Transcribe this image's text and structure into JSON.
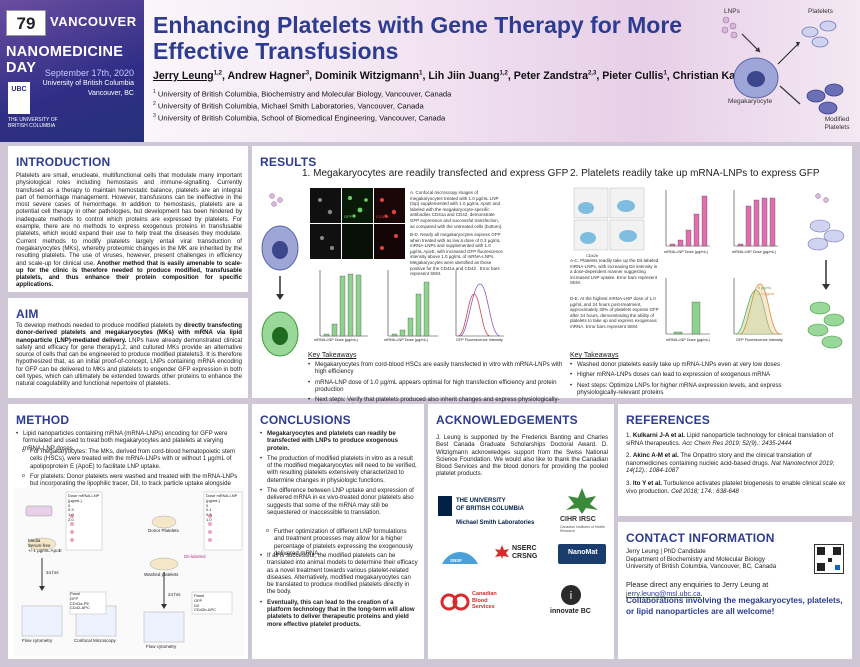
{
  "header": {
    "poster_number": "79",
    "brand_top": "VANCOUVER",
    "brand_main": "NANOMEDICINE DAY",
    "brand_date": "September 17th, 2020",
    "brand_univ": "University of British Columbia",
    "brand_city": "Vancouver, BC",
    "ubc_logo": "UBC",
    "ubc_logo_text": "THE UNIVERSITY OF BRITISH COLUMBIA",
    "title": "Enhancing Platelets with Gene Therapy for More Effective Transfusions",
    "authors": [
      {
        "name": "Jerry Leung",
        "sup": "1,2",
        "underline": true
      },
      {
        "name": "Andrew Hagner",
        "sup": "3"
      },
      {
        "name": "Dominik Witzigmann",
        "sup": "1"
      },
      {
        "name": "Lih Jiin Juang",
        "sup": "1,2"
      },
      {
        "name": "Peter Zandstra",
        "sup": "2,3"
      },
      {
        "name": "Pieter Cullis",
        "sup": "1"
      },
      {
        "name": "Christian Kastrup",
        "sup": "1,2"
      }
    ],
    "affiliations": [
      {
        "sup": "1",
        "text": "University of British Columbia, Biochemistry and Molecular Biology, Vancouver, Canada"
      },
      {
        "sup": "2",
        "text": "University of British Columbia, Michael Smith Laboratories, Vancouver, Canada"
      },
      {
        "sup": "3",
        "text": "University of British Columbia, School of Biomedical Engineering, Vancouver, Canada"
      }
    ],
    "figure_labels": {
      "lnps": "LNPs",
      "platelets": "Platelets",
      "megakaryocyte": "Megakaryocyte",
      "modified": "Modified Platelets"
    }
  },
  "introduction": {
    "title": "INTRODUCTION",
    "text": "Platelets are small, enucleate, multifunctional cells that modulate many important physiological roles including hemostasis and immune-signalling. Currently transfused as a therapy to maintain hemostatic balance, platelets are an integral part of hemorrhage management. However, transfusions can be ineffective in the most severe cases of hemorrhage. In addition to hemostasis, platelets are a potential cell therapy in other pathologies, but development has been hindered by inadequate methods to control which proteins are expressed by platelets. For example, there are no methods to express exogenous proteins in transfusable platelets, which would expand their use to help treat the diseases they modulate. Current methods to modify platelets largely entail viral transduction of megakaryocytes (MKs), whereby proteomic changes in the MK are inherited by the resulting platelets. The use of viruses, however, present challenges in efficiency and scale-up for clinical use. ",
    "bold": "Another method that is easily amenable to scale-up for the clinic is therefore needed to produce modified, transfusable platelets, and thus enhance their protein composition for specific applications."
  },
  "aim": {
    "title": "AIM",
    "text_pre": "To develop methods needed to produce modified platelets by ",
    "bold": "directly transfecting donor-derived platelets and megakaryocytes (MKs) with mRNA via lipid nanoparticle (LNP)-mediated delivery.",
    "text_post": " LNPs have already demonstrated clinical safety and efficacy for gene therapy1,2, and cultured MKs provide an alternative source of cells that can be engineered to produce modified platelets3. It is therefore hypothesized that, as an initial proof-of-concept, LNPs containing mRNA encoding for GFP can be delivered to MKs and platelets to engender GFP expression in both cell types, which can ultimately be extended towards other proteins to enhance the natural coagulability and functional repertoire of platelets."
  },
  "results": {
    "title": "RESULTS",
    "sub1": "1. Megakaryocytes are readily transfected and express GFP",
    "sub2": "2. Platelets readily take up mRNA-LNPs to express GFP",
    "caption1a": "A. Confocal microscopy images of megakaryocytes treated with 1.0 µg/mL LNP (top) supplemented with 1.0 µg/mL ApoE and labeled with the megakaryocyte-specific antibodies CD41a and CD42, demonstrate GFP expression and successful transfection, as compared with the untreated cells (bottom).",
    "caption1b": "B-D. Nearly all megakaryocytes express GFP when treated with as low a dose of 0.3 µg/mL mRNA-LNPs and supplemented with 1.0 µg/mL ApoE, with increased GFP fluorescence intensity above 1.0 µg/mL of mRNA-LNPs. Megakaryocytes were identified as those positive for the CD41a and CD42 . Error bars represent SEM.",
    "caption2a": "A-C. Platelets readily take up the DiI-labeled mRNA-LNPs, with increasing DiI intensity in a dose-dependent manner suggesting increased LNP uptake. Error bars represent SEM.",
    "caption2b": "D-E. At the highest mRNA-LNP dose of 1.0 µg/mL and 24 hours post-treatment, approximately 30% of platelets express GFP after 24 hours, demonstrating the ability of platelets to take up and express exogenous mRNA. Error bars represent SEM.",
    "kt_title": "Key Takeaways",
    "kt1": [
      "Megakaryocytes from cord-blood HSCs are easily transfected in vitro with mRNA-LNPs with high efficiency",
      "mRNA-LNP dose of 1.0 µg/mL appears optimal for high transfection efficiency and protein production",
      "Next steps: Verify that platelets produced also inherit changes and express physiologically-relevant protein"
    ],
    "kt2": [
      "Washed donor platelets easily take up mRNA-LNPs even at very low doses",
      "Higher mRNA-LNPs doses can lead to expression of exogenous mRNA",
      "Next steps: Optimize LNPs for higher mRNA expression levels, and express physiologically-relevant proteins"
    ],
    "fig_labels": {
      "gfp": "GFP",
      "cd41a": "CD41a",
      "cd42": "CD42",
      "axis_dose": "mRNA-LNP Dose (µg/mL)",
      "axis_pct": "Percentage Megakaryocytes Expressing GFP (%)",
      "axis_mfi": "Mean GFP Intensity (a.u.)",
      "axis_gfp": "GFP Fluorescence Intensity",
      "axis_dii": "Mean DiI Intensity",
      "axis_pctplt": "Percentage of DiI+ Platelets",
      "axis_pctgfp": "Percentage Platelets Expressing GFP (%)",
      "cd42b": "CD42b",
      "leg0": "0 µg/mL",
      "leg1": "1.0 µg/mL"
    }
  },
  "method": {
    "title": "METHOD",
    "bullet": "Lipid nanoparticles containing mRNA (mRNA-LNPs) encoding for GFP were formulated and used to treat both megakaryocytes and platelets at varying mRNA-LNP doses.",
    "sub": [
      "For megakaryocytes: The MKs, derived from cord-blood hematopoietic stem cells (HSCs), were treated with the mRNA-LNPs with or without 1 µg/mL of apolipoprotein E (ApoE) to facilitate LNP uptake.",
      "For platelets: Donor platelets were washed and treated with the mRNA-LNPs but incorporating the lipophilic tracer, DiI, to track particle uptake alongside expression."
    ],
    "diagram": {
      "media": "Media",
      "serum": "Serum-free",
      "apoe": "+/-1 µg/mL ApoE",
      "hours": "24 hrs",
      "panel": "Panel",
      "gfp": "GFP",
      "cd41": "CD41a-PE",
      "cd42": "CD42-APC",
      "flow": "Flow cytometry",
      "confocal": "Confocal Microscopy",
      "dose_title": "Dose mRNA-LNP (µg/mL)",
      "doses": [
        "0",
        "0.3",
        "1.0",
        "2.0"
      ],
      "donor": "Donor Platelets",
      "washed": "Washed platelets",
      "dii": "DiI-labeled",
      "hours2": "24 hrs",
      "panel2": "Panel",
      "gfp2": "GFP",
      "dii2": "DiI",
      "cd42b": "CD42b-APC",
      "flow2": "Flow cytometry",
      "dose_title2": "Dose mRNA-LNP (µg/mL)",
      "doses2": [
        "0",
        "0.1",
        "0.3",
        "1.0"
      ]
    }
  },
  "conclusions": {
    "title": "CONCLUSIONS",
    "items": [
      {
        "bold": "Megakaryocytes and platelets can readily be transfected with LNPs to produce exogenous protein.",
        "text": ""
      },
      {
        "bold": "",
        "text": "The production of modified platelets in vitro as a result of the modified megakaryocytes will need to be verified, with resulting platelets extensively characterized to determine changes in physiologic functions."
      },
      {
        "bold": "",
        "text": "The difference between LNP uptake and expression of delivered mRNA in ex vivo-treated donor platelets also suggests that some of the mRNA may still be sequestered or inaccessible to translation."
      }
    ],
    "sub": "Further optimization of different LNP formulations and treatment processes may allow for a higher percentage of platelets expressing the exogenously delivered mRNA.",
    "items2": [
      {
        "bold": "",
        "text": "If all is successful, the modified platelets can be translated into animal models to determine their efficacy as a novel treatment towards various platelet-related diseases. Alternatively, modified megakaryocytes can be translated to produce modified platelets directly in the body."
      },
      {
        "bold": "Eventually, this can lead to the creation of a platform technology that in the long-term will allow platelets to deliver therapeutic proteins and yield more effective platelet products.",
        "text_pre": "Eventually, "
      }
    ]
  },
  "acknowledgements": {
    "title": "ACKNOWLEDGEMENTS",
    "text": "J. Leung is supported by the Frederick Banting and Charles Best Canada Graduate Scholarships Doctoral Award. D. Witzigmann acknowledges support from the Swiss National Science Foundation. We would also like to thank the Canadian Blood Services and the blood donors for providing the pooled platelet products.",
    "logos": {
      "ubc1": "THE UNIVERSITY",
      "ubc2": "OF BRITISH COLUMBIA",
      "msl": "Michael Smith Laboratories",
      "cihr": "CIHR IRSC",
      "cihr_sub": "Canadian Institutes of Health Research",
      "nserc": "NSERC",
      "crsng": "CRSNG",
      "nanomat": "NanoMat",
      "cbs1": "Canadian",
      "cbs2": "Blood",
      "cbs3": "Services",
      "innovate": "innovate BC",
      "snsf": "SNSF"
    }
  },
  "references": {
    "title": "REFERENCES",
    "items": [
      {
        "num": "1.",
        "author": "Kulkarni J-A et al.",
        "text": " Lipid nanoparticle technology for clinical translation of siRNA therapeutics. ",
        "ital": "Acc Chem Res 2019; 52(9).: 2435-2444"
      },
      {
        "num": "2.",
        "author": "Akinc A-M et al.",
        "text": " The Onpattro story and the clinical translation of nanomedicines containing nucleic acid-based drugs. ",
        "ital": "Nat Nanotechnol 2019; 14(12).: 1084-1087"
      },
      {
        "num": "3.",
        "author": "Ito Y et al.",
        "text": " Turbulence activates platelet biogenesis to enable clinical scale ex vivo production. ",
        "ital": "Cell 2018; 174.: 638-648"
      }
    ]
  },
  "contact": {
    "title": "CONTACT INFORMATION",
    "name": "Jerry Leung | PhD Candidate",
    "dept": "Department of Biochemistry and Molecular Biology",
    "univ": "University of British Columbia, Vancouver, BC, Canada",
    "enquiry_pre": "Please direct any enquiries to Jerry Leung at ",
    "email": "jerry.leung@msl.ubc.ca",
    "enquiry_post": ".",
    "collab": "Collaborations involving the megakaryocytes, platelets, or lipid nanoparticles are all welcome!"
  },
  "colors": {
    "accent": "#2d3c90",
    "magenta": "#b03a8a",
    "green": "#3a9a3a"
  }
}
